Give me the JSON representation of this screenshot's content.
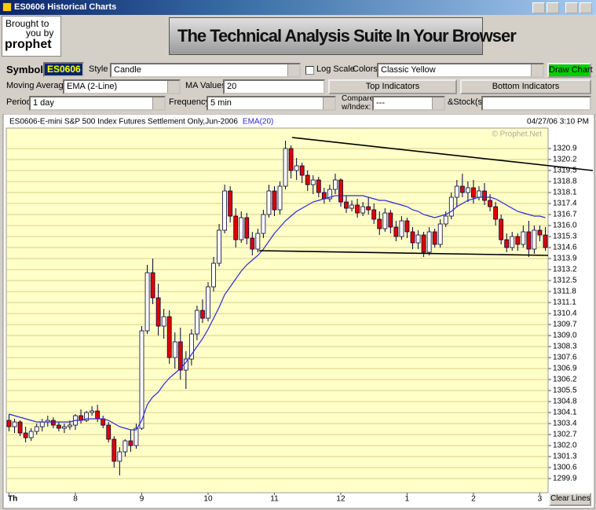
{
  "window": {
    "title": "ES0606 Historical Charts"
  },
  "logo": {
    "line1": "Brought to",
    "line2": "you by",
    "brand": "prophet"
  },
  "banner": "The Technical Analysis Suite In Your Browser",
  "toolbar": {
    "symbol_label": "Symbol",
    "symbol": "ES0606",
    "style_label": "Style",
    "style": "Candle",
    "log_scale_label": "Log Scale",
    "colors_label": "Colors",
    "colors": "Classic Yellow",
    "draw_button": "Draw Chart",
    "ma_label": "Moving Average",
    "ma": "EMA (2-Line)",
    "ma_values_label": "MA Values",
    "ma_values": "20",
    "top_indicators": "Top Indicators",
    "bottom_indicators": "Bottom Indicators",
    "period_label": "Period",
    "period": "1 day",
    "frequency_label": "Frequency",
    "frequency": "5 min",
    "compare_label": [
      "Compare",
      "w/Index:"
    ],
    "compare": "---",
    "stocks_label": "&Stock(s)"
  },
  "clear_button": "Clear Lines",
  "chart_data": {
    "type": "candlestick",
    "title": "ES0606-E-mini S&P 500 Index Futures Settlement Only,Jun-2006",
    "timestamp": "04/27/06 3:10 PM",
    "watermark": "© Prophet.Net",
    "categories": [
      "Th",
      null,
      null,
      null,
      null,
      null,
      null,
      null,
      null,
      null,
      null,
      null,
      "8",
      null,
      null,
      null,
      null,
      null,
      null,
      null,
      null,
      null,
      null,
      null,
      "9",
      null,
      null,
      null,
      null,
      null,
      null,
      null,
      null,
      null,
      null,
      null,
      "10",
      null,
      null,
      null,
      null,
      null,
      null,
      null,
      null,
      null,
      null,
      null,
      "11",
      null,
      null,
      null,
      null,
      null,
      null,
      null,
      null,
      null,
      null,
      null,
      "12",
      null,
      null,
      null,
      null,
      null,
      null,
      null,
      null,
      null,
      null,
      null,
      "1",
      null,
      null,
      null,
      null,
      null,
      null,
      null,
      null,
      null,
      null,
      null,
      "2",
      null,
      null,
      null,
      null,
      null,
      null,
      null,
      null,
      null,
      null,
      null,
      "3",
      null
    ],
    "open": [
      1303.6,
      1303.2,
      1303.5,
      1302.8,
      1302.5,
      1302.9,
      1303.2,
      1303.5,
      1303.6,
      1303.3,
      1303.1,
      1303.2,
      1303.3,
      1303.9,
      1303.6,
      1304.1,
      1304.2,
      1303.7,
      1303.3,
      1302.4,
      1301.0,
      1301.6,
      1302.3,
      1302.0,
      1303.1,
      1309.3,
      1313.0,
      1311.4,
      1309.6,
      1310.2,
      1307.6,
      1308.6,
      1306.8,
      1307.5,
      1309.1,
      1310.6,
      1310.1,
      1312.1,
      1313.6,
      1315.7,
      1318.2,
      1316.6,
      1315.1,
      1316.5,
      1315.2,
      1314.5,
      1315.5,
      1316.7,
      1318.2,
      1317.0,
      1318.5,
      1320.9,
      1319.5,
      1319.8,
      1319.2,
      1318.6,
      1318.9,
      1318.1,
      1317.7,
      1318.3,
      1318.9,
      1317.5,
      1317.1,
      1317.3,
      1316.8,
      1317.2,
      1317.0,
      1316.4,
      1315.8,
      1316.8,
      1315.9,
      1315.3,
      1316.3,
      1315.6,
      1314.9,
      1315.4,
      1314.3,
      1315.6,
      1314.8,
      1316.1,
      1316.6,
      1317.8,
      1318.5,
      1318.1,
      1318.4,
      1317.8,
      1318.2,
      1317.6,
      1317.2,
      1316.4,
      1315.1,
      1314.6,
      1315.3,
      1314.8,
      1315.6,
      1314.5,
      1315.7,
      1315.4
    ],
    "high": [
      1304.0,
      1303.7,
      1303.6,
      1303.2,
      1303.1,
      1303.4,
      1303.7,
      1303.9,
      1303.8,
      1303.5,
      1303.4,
      1303.6,
      1304.0,
      1304.3,
      1304.2,
      1304.5,
      1304.6,
      1303.9,
      1303.5,
      1302.6,
      1301.9,
      1302.4,
      1303.0,
      1303.4,
      1309.6,
      1313.5,
      1313.9,
      1312.3,
      1310.7,
      1310.6,
      1309.2,
      1309.5,
      1308.0,
      1309.4,
      1310.9,
      1311.3,
      1312.4,
      1314.0,
      1316.1,
      1318.6,
      1318.5,
      1317.1,
      1316.9,
      1316.8,
      1315.6,
      1315.8,
      1317.0,
      1318.6,
      1318.5,
      1318.8,
      1321.4,
      1321.1,
      1320.3,
      1320.0,
      1319.5,
      1319.2,
      1319.1,
      1318.4,
      1318.6,
      1319.3,
      1319.0,
      1317.9,
      1317.6,
      1317.7,
      1317.5,
      1317.8,
      1317.4,
      1316.9,
      1317.1,
      1317.0,
      1316.3,
      1316.6,
      1316.5,
      1315.9,
      1315.7,
      1315.6,
      1315.9,
      1315.8,
      1316.4,
      1316.9,
      1318.1,
      1318.9,
      1319.3,
      1318.8,
      1318.9,
      1318.5,
      1318.7,
      1318.0,
      1317.5,
      1316.7,
      1315.5,
      1315.6,
      1315.5,
      1316.0,
      1316.3,
      1316.0,
      1316.0,
      1315.9
    ],
    "low": [
      1302.9,
      1302.8,
      1302.6,
      1302.2,
      1302.3,
      1302.7,
      1302.9,
      1303.2,
      1303.1,
      1302.9,
      1302.8,
      1303.0,
      1303.0,
      1303.4,
      1303.5,
      1303.9,
      1303.5,
      1303.1,
      1302.2,
      1300.6,
      1300.1,
      1301.3,
      1301.6,
      1301.8,
      1303.0,
      1309.1,
      1311.0,
      1309.0,
      1308.8,
      1307.2,
      1306.9,
      1306.2,
      1305.6,
      1307.1,
      1308.7,
      1309.8,
      1309.9,
      1311.8,
      1313.4,
      1315.5,
      1316.2,
      1314.6,
      1314.9,
      1314.8,
      1314.1,
      1314.3,
      1315.2,
      1316.5,
      1316.6,
      1316.7,
      1318.3,
      1319.0,
      1318.9,
      1318.7,
      1318.2,
      1318.0,
      1317.8,
      1317.4,
      1317.5,
      1318.0,
      1317.2,
      1316.8,
      1316.9,
      1316.5,
      1316.6,
      1316.7,
      1316.1,
      1315.4,
      1315.6,
      1315.5,
      1315.0,
      1315.1,
      1315.2,
      1314.5,
      1314.5,
      1314.0,
      1314.1,
      1314.6,
      1314.6,
      1315.9,
      1316.4,
      1317.2,
      1317.8,
      1317.5,
      1317.4,
      1317.6,
      1317.3,
      1316.9,
      1316.0,
      1314.8,
      1314.3,
      1314.4,
      1314.4,
      1314.6,
      1314.0,
      1314.2,
      1315.0,
      1314.4
    ],
    "close": [
      1303.2,
      1303.5,
      1302.8,
      1302.5,
      1302.9,
      1303.2,
      1303.5,
      1303.6,
      1303.3,
      1303.1,
      1303.2,
      1303.3,
      1303.9,
      1303.6,
      1304.1,
      1304.2,
      1303.7,
      1303.3,
      1302.4,
      1301.0,
      1301.6,
      1302.3,
      1302.0,
      1303.1,
      1309.3,
      1313.0,
      1311.4,
      1309.6,
      1310.2,
      1307.6,
      1308.6,
      1306.8,
      1307.5,
      1309.1,
      1310.6,
      1310.1,
      1312.1,
      1313.6,
      1315.7,
      1318.2,
      1316.6,
      1315.1,
      1316.5,
      1315.2,
      1314.5,
      1315.5,
      1316.7,
      1318.2,
      1317.0,
      1318.5,
      1320.9,
      1319.5,
      1319.8,
      1319.2,
      1318.6,
      1318.9,
      1318.1,
      1317.7,
      1318.3,
      1318.9,
      1317.5,
      1317.1,
      1317.3,
      1316.8,
      1317.2,
      1317.0,
      1316.4,
      1315.8,
      1316.8,
      1315.9,
      1315.3,
      1316.3,
      1315.6,
      1314.9,
      1315.4,
      1314.3,
      1315.6,
      1314.8,
      1316.1,
      1316.6,
      1317.8,
      1318.5,
      1318.1,
      1318.4,
      1317.8,
      1318.2,
      1317.6,
      1317.2,
      1316.4,
      1315.1,
      1314.6,
      1315.3,
      1314.8,
      1315.6,
      1314.5,
      1315.7,
      1315.4,
      1314.6
    ],
    "up_color": "#ffffff",
    "down_color": "#e00000",
    "wick_color": "#000040",
    "background": "#ffffc8",
    "series": [
      {
        "name": "EMA(20)",
        "color": "#2a2ad8",
        "values": [
          1304.0,
          1303.9,
          1303.8,
          1303.7,
          1303.6,
          1303.5,
          1303.5,
          1303.5,
          1303.5,
          1303.5,
          1303.5,
          1303.5,
          1303.6,
          1303.6,
          1303.7,
          1303.7,
          1303.7,
          1303.7,
          1303.6,
          1303.4,
          1303.2,
          1303.1,
          1303.0,
          1303.0,
          1303.6,
          1304.6,
          1305.1,
          1305.4,
          1305.9,
          1306.3,
          1306.6,
          1306.9,
          1307.3,
          1307.8,
          1308.3,
          1308.8,
          1309.4,
          1310.1,
          1310.8,
          1311.6,
          1312.1,
          1312.6,
          1313.1,
          1313.5,
          1313.8,
          1314.1,
          1314.5,
          1315.0,
          1315.5,
          1315.9,
          1316.3,
          1316.6,
          1316.9,
          1317.1,
          1317.3,
          1317.5,
          1317.6,
          1317.7,
          1317.8,
          1317.9,
          1317.9,
          1317.9,
          1317.9,
          1317.9,
          1317.9,
          1317.8,
          1317.7,
          1317.6,
          1317.6,
          1317.5,
          1317.4,
          1317.3,
          1317.2,
          1317.0,
          1316.9,
          1316.7,
          1316.6,
          1316.5,
          1316.6,
          1316.7,
          1316.9,
          1317.2,
          1317.4,
          1317.6,
          1317.7,
          1317.8,
          1317.8,
          1317.8,
          1317.7,
          1317.5,
          1317.3,
          1317.1,
          1316.9,
          1316.8,
          1316.7,
          1316.6,
          1316.6,
          1316.5
        ]
      }
    ],
    "trend_lines": [
      {
        "color": "#000000",
        "x": [
          51.2,
          105.6
        ],
        "y": [
          1321.6,
          1319.5
        ]
      },
      {
        "color": "#000000",
        "x": [
          45.2,
          97.5
        ],
        "y": [
          1314.4,
          1314.1
        ]
      }
    ],
    "ylim": [
      1299.0,
      1322.2
    ],
    "yticks": [
      1299.9,
      1300.6,
      1301.3,
      {
        "value": 1302.0,
        "label": "1302.0"
      },
      1302.7,
      1303.4,
      1304.1,
      1304.8,
      1305.5,
      1306.2,
      1306.9,
      1307.6,
      1308.3,
      {
        "value": 1309.0,
        "label": "1309.0"
      },
      1309.7,
      1310.4,
      1311.1,
      1311.8,
      1312.5,
      1313.2,
      1313.9,
      1314.6,
      1315.3,
      {
        "value": 1316.0,
        "label": "1316.0"
      },
      1316.7,
      1317.4,
      1318.1,
      1318.8,
      1319.5,
      1320.2,
      1320.9
    ],
    "grid": true,
    "log_scale": false
  }
}
